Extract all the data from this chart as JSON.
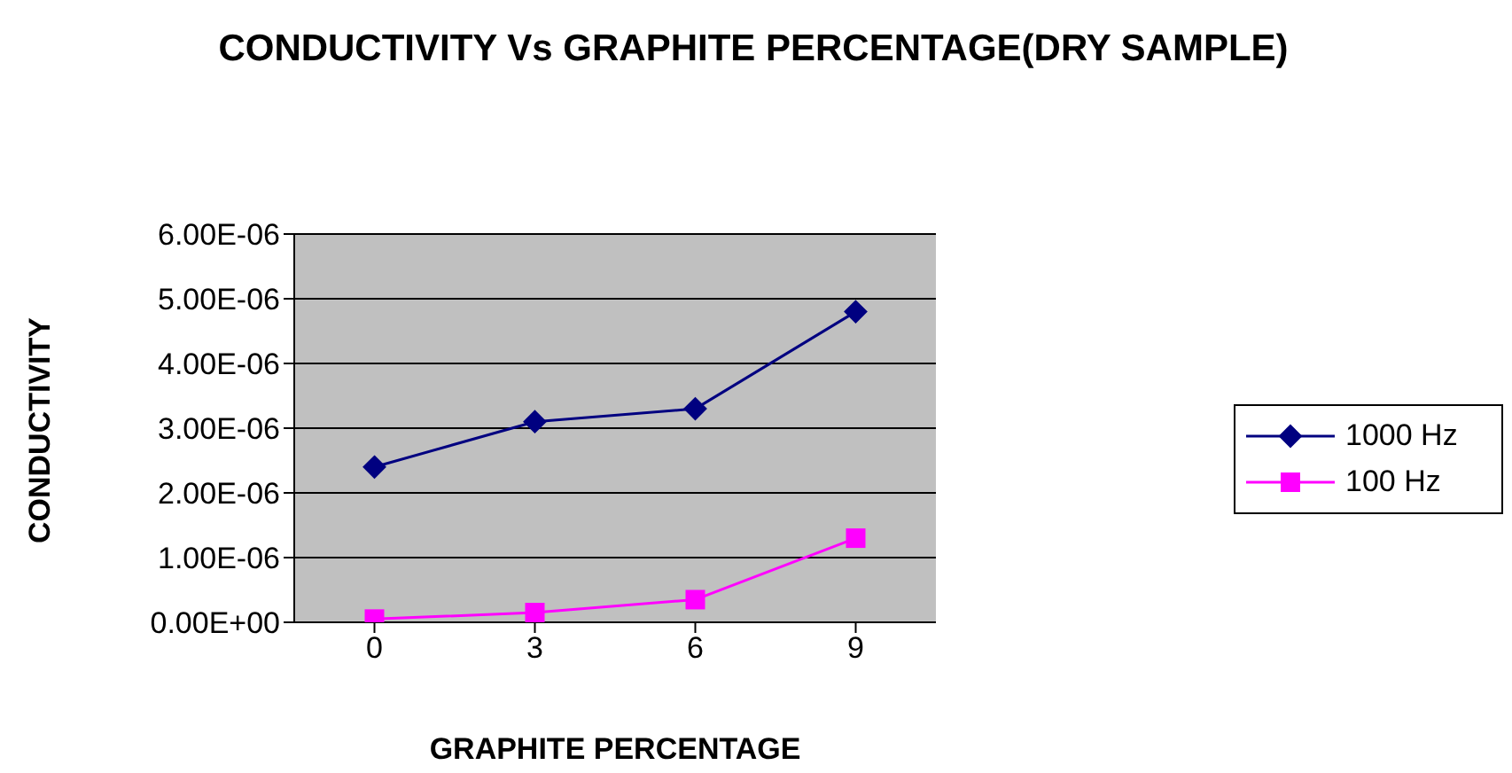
{
  "chart_data": {
    "type": "line",
    "title": "CONDUCTIVITY Vs GRAPHITE PERCENTAGE(DRY SAMPLE)",
    "xlabel": "GRAPHITE PERCENTAGE",
    "ylabel": "CONDUCTIVITY",
    "categories": [
      "0",
      "3",
      "6",
      "9"
    ],
    "series": [
      {
        "name": "1000 Hz",
        "color": "#000080",
        "marker": "diamond",
        "values": [
          2.4e-06,
          3.1e-06,
          3.3e-06,
          4.8e-06
        ]
      },
      {
        "name": "100 Hz",
        "color": "#ff00ff",
        "marker": "square",
        "values": [
          5e-08,
          1.5e-07,
          3.5e-07,
          1.3e-06
        ]
      }
    ],
    "ylim": [
      0,
      6e-06
    ],
    "yticks": [
      {
        "value": 0,
        "label": "0.00E+00"
      },
      {
        "value": 1e-06,
        "label": "1.00E-06"
      },
      {
        "value": 2e-06,
        "label": "2.00E-06"
      },
      {
        "value": 3e-06,
        "label": "3.00E-06"
      },
      {
        "value": 4e-06,
        "label": "4.00E-06"
      },
      {
        "value": 5e-06,
        "label": "5.00E-06"
      },
      {
        "value": 6e-06,
        "label": "6.00E-06"
      }
    ],
    "grid": "y",
    "legend": "right",
    "line_style": "solid"
  }
}
